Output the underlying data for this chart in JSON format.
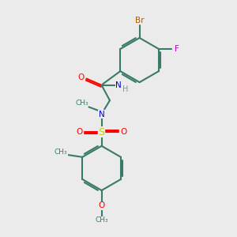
{
  "background_color": "#ebebeb",
  "figure_size": [
    3.0,
    3.0
  ],
  "dpi": 100,
  "bond_color": "#3a7a6a",
  "atom_colors": {
    "Br": "#b35a00",
    "F": "#cc00cc",
    "O": "#ff0000",
    "N": "#0000dd",
    "S": "#cccc00",
    "C": "#3a7a6a"
  },
  "lw": 1.5,
  "fs": 7.5,
  "xlim": [
    0,
    10
  ],
  "ylim": [
    0,
    10
  ]
}
